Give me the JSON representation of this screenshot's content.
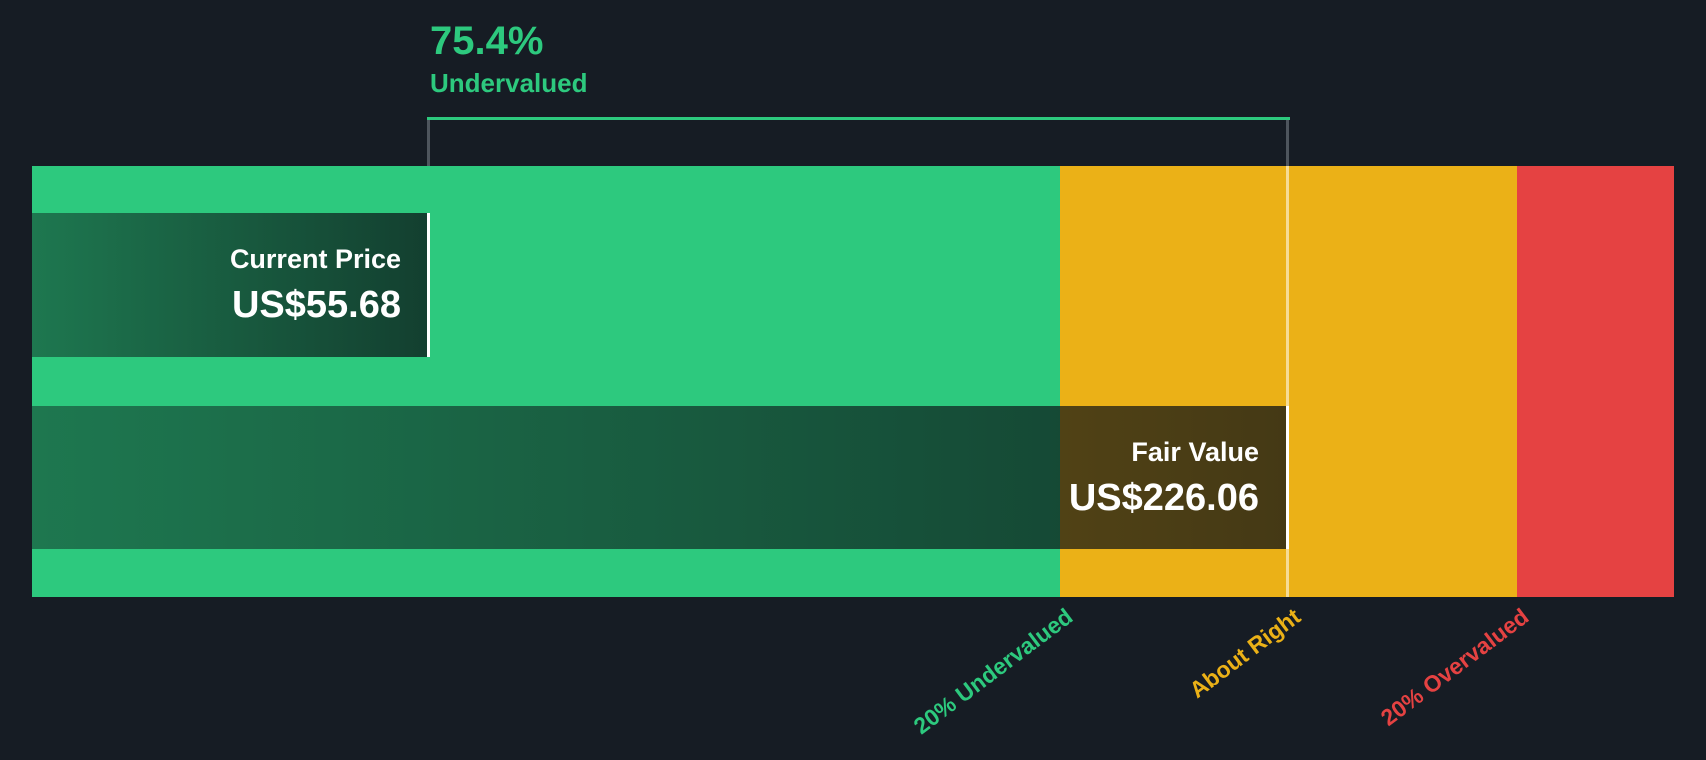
{
  "headline": {
    "percent": "75.4%",
    "label": "Undervalued"
  },
  "current_price": {
    "label": "Current Price",
    "value": "US$55.68"
  },
  "fair_value": {
    "label": "Fair Value",
    "value": "US$226.06"
  },
  "axis_labels": {
    "undervalued": "20% Undervalued",
    "about_right": "About Right",
    "overvalued": "20% Overvalued"
  },
  "colors": {
    "background": "#161c24",
    "green": "#2dc97e",
    "amber": "#ebb117",
    "red": "#e54242",
    "grey_line": "#4e555d",
    "white_text": "#ffffff"
  },
  "chart_data": {
    "type": "bar",
    "title": "75.4% Undervalued",
    "undervalued_percent": 75.4,
    "series": [
      {
        "name": "Current Price",
        "value": 55.68,
        "display": "US$55.68"
      },
      {
        "name": "Fair Value",
        "value": 226.06,
        "display": "US$226.06"
      }
    ],
    "zones": [
      {
        "label": "20% Undervalued",
        "color": "#2dc97e"
      },
      {
        "label": "About Right",
        "color": "#ebb117"
      },
      {
        "label": "20% Overvalued",
        "color": "#e54242"
      }
    ],
    "legend_position": "bottom",
    "orientation": "horizontal",
    "grid": false
  }
}
